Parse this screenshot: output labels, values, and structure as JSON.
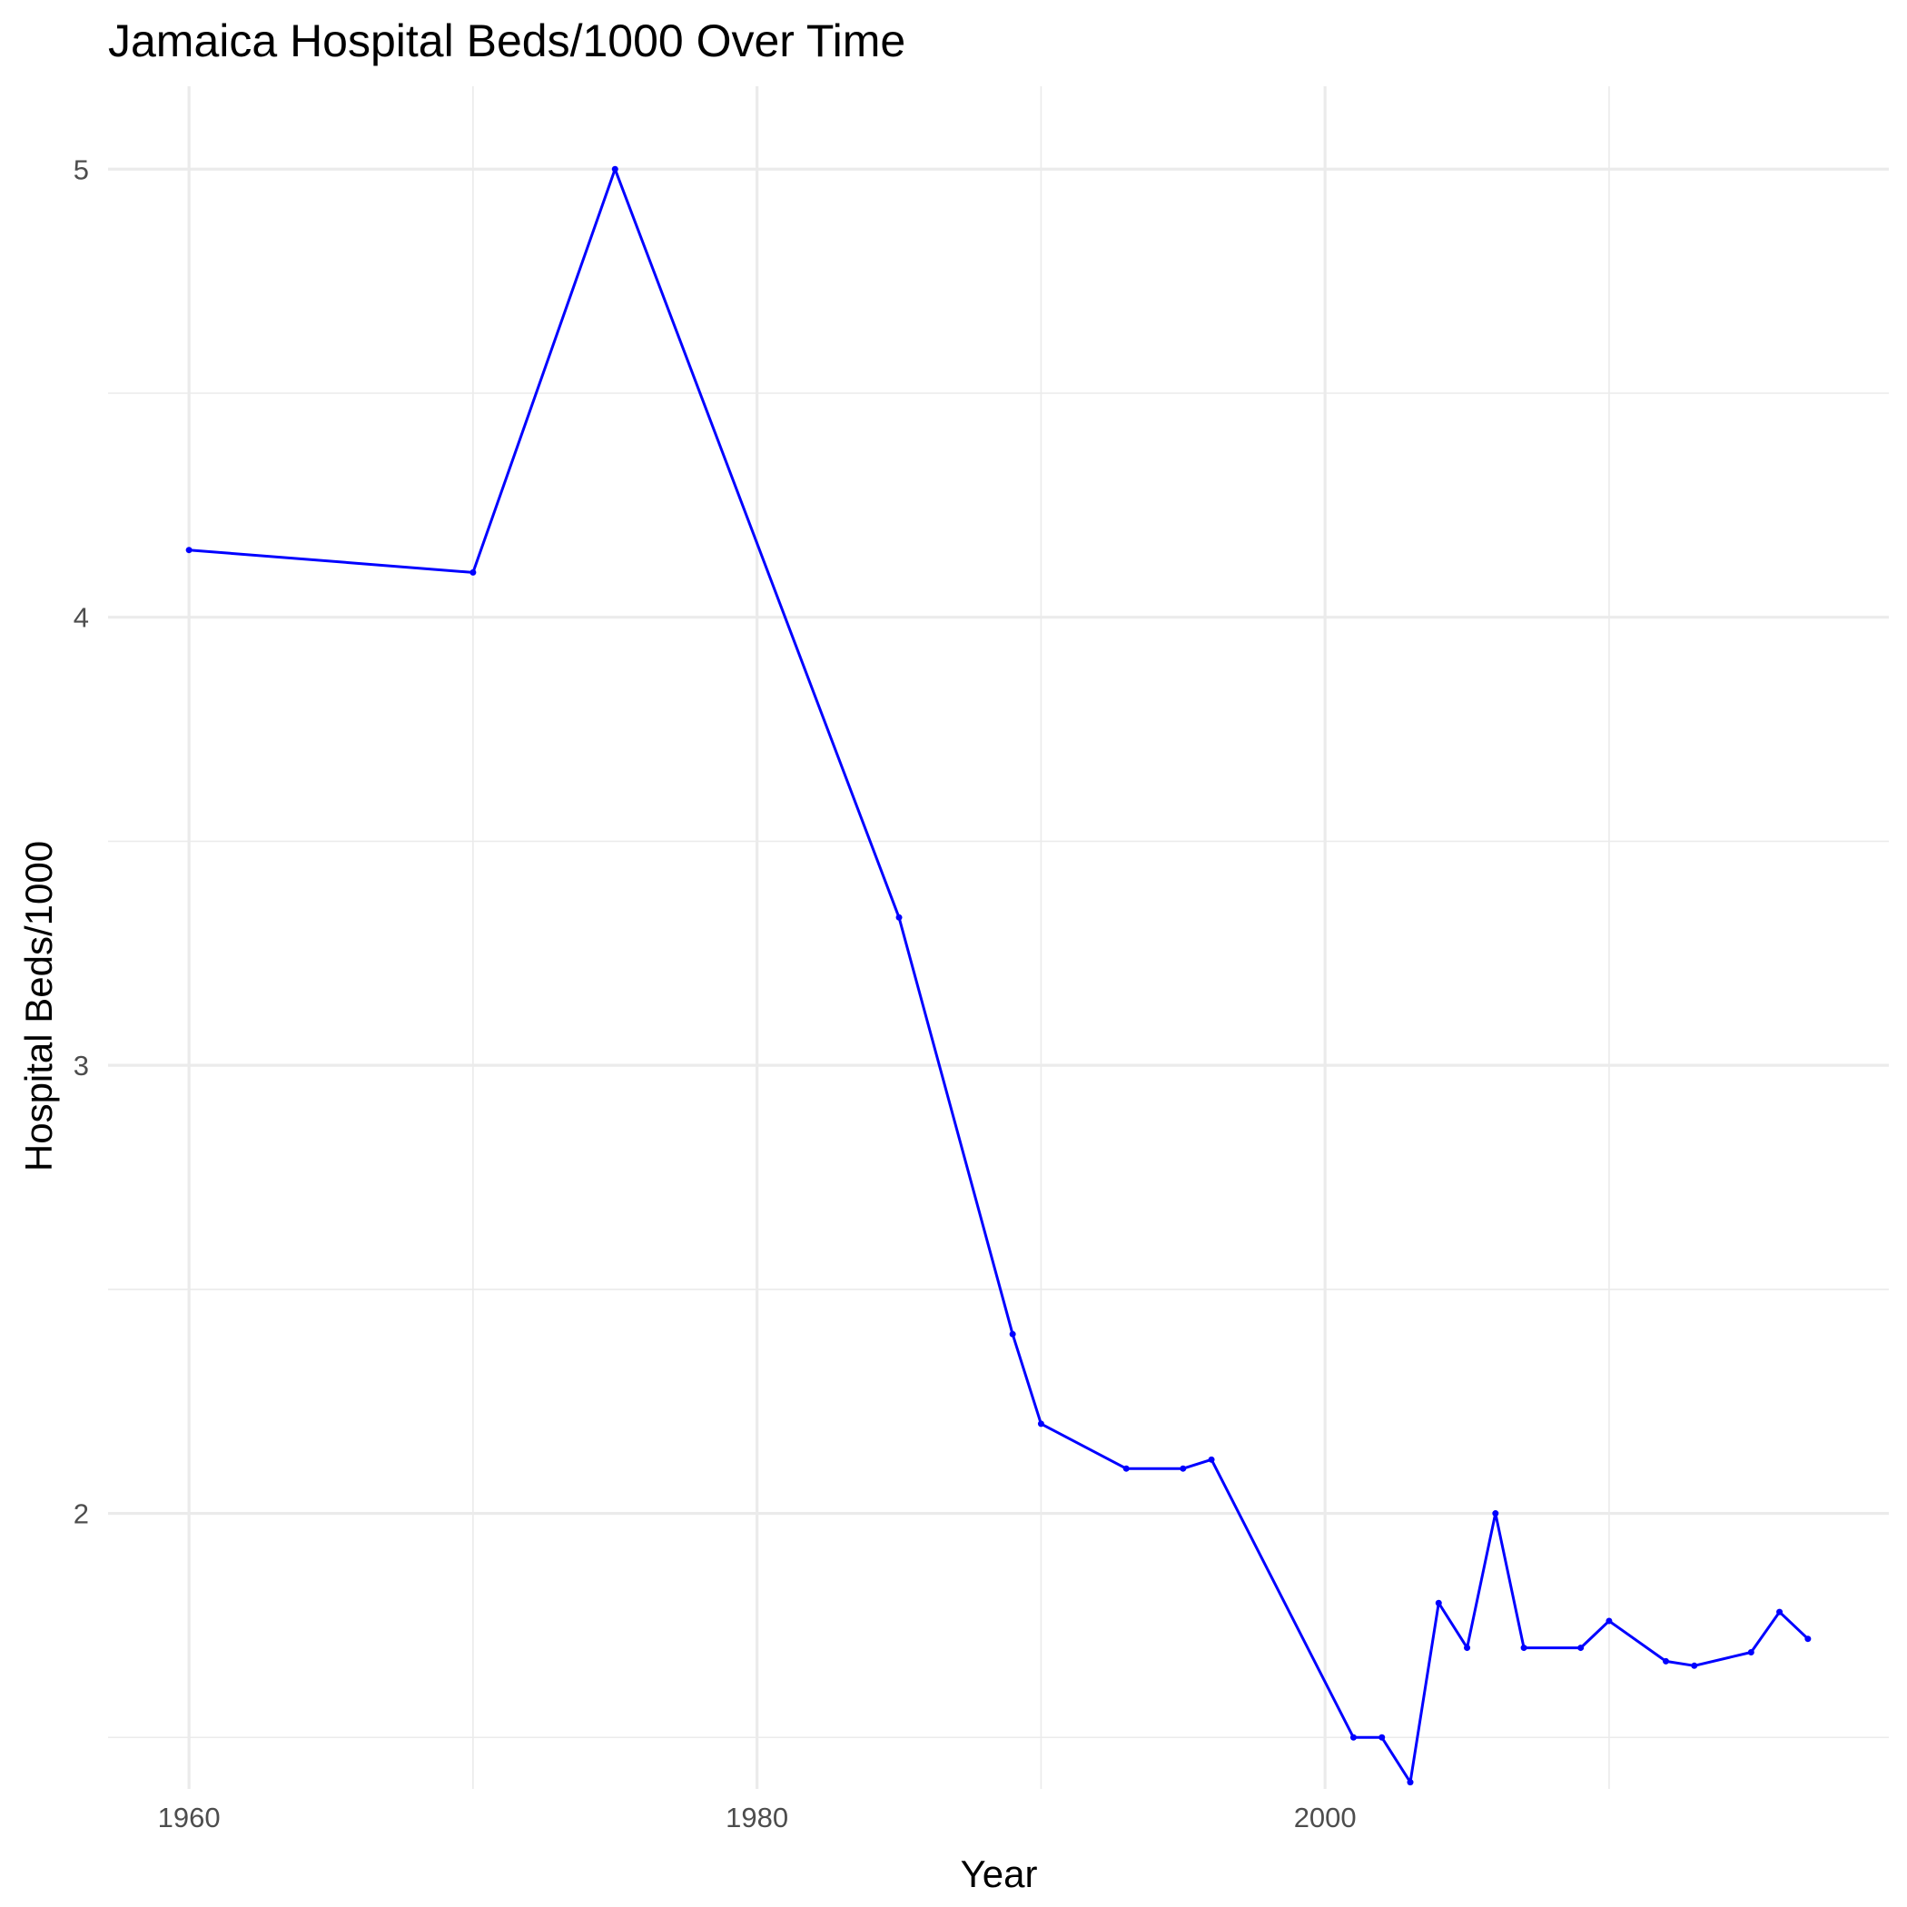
{
  "chart_data": {
    "type": "line",
    "title": "Jamaica Hospital Beds/1000 Over Time",
    "xlabel": "Year",
    "ylabel": "Hospital Beds/1000",
    "xlim": [
      1957.15,
      2019.85
    ],
    "ylim": [
      1.385,
      5.185
    ],
    "x_major_ticks": [
      1960,
      1980,
      2000
    ],
    "x_minor_ticks": [
      1970,
      1990,
      2010
    ],
    "y_major_ticks": [
      2,
      3,
      4,
      5
    ],
    "y_minor_ticks": [
      1.5,
      2.5,
      3.5,
      4.5
    ],
    "x_tick_labels": [
      "1960",
      "1980",
      "2000"
    ],
    "y_tick_labels": [
      "2",
      "3",
      "4",
      "5"
    ],
    "grid": true,
    "legend": "none",
    "color": "#0000ff",
    "series": [
      {
        "x": [
          1960,
          1970,
          1975,
          1985,
          1989,
          1990,
          1993,
          1995,
          1996,
          2001,
          2002,
          2003,
          2004,
          2005,
          2006,
          2007,
          2009,
          2010,
          2012,
          2013,
          2015,
          2016,
          2017
        ],
        "y": [
          4.15,
          4.1,
          5.0,
          3.33,
          2.4,
          2.2,
          2.1,
          2.1,
          2.12,
          1.5,
          1.5,
          1.4,
          1.8,
          1.7,
          2.0,
          1.7,
          1.7,
          1.76,
          1.67,
          1.66,
          1.69,
          1.78,
          1.72
        ]
      }
    ]
  }
}
